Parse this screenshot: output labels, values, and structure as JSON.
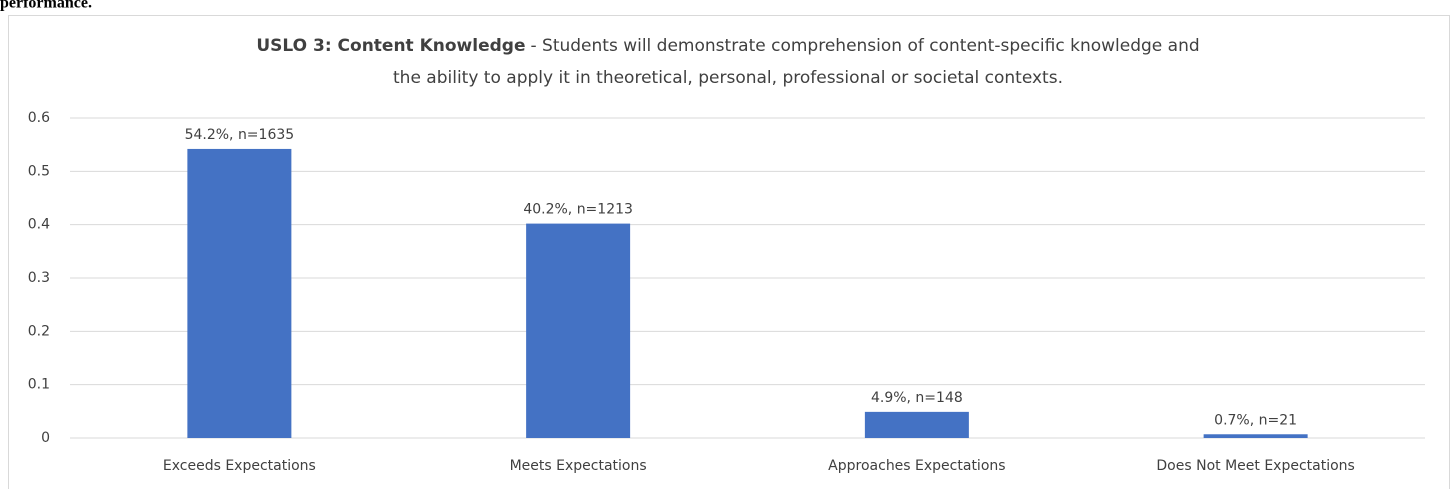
{
  "page_text": "performance.",
  "chart_data": {
    "type": "bar",
    "title": {
      "bold": "USLO 3: Content Knowledge",
      "line1": "- Students will demonstrate comprehension of content-specific knowledge and",
      "line2": "the ability to apply it in theoretical, personal, professional or societal contexts."
    },
    "categories": [
      "Exceeds Expectations",
      "Meets Expectations",
      "Approaches Expectations",
      "Does Not Meet Expectations"
    ],
    "values": [
      0.542,
      0.402,
      0.049,
      0.007
    ],
    "value_labels": [
      "54.2%, n=1635",
      "40.2%, n=1213",
      "4.9%, n=148",
      "0.7%, n=21"
    ],
    "color": "#4472c4",
    "ylim": [
      0,
      0.6
    ],
    "yticks": [
      0,
      0.1,
      0.2,
      0.3,
      0.4,
      0.5,
      0.6
    ],
    "grid": true
  }
}
